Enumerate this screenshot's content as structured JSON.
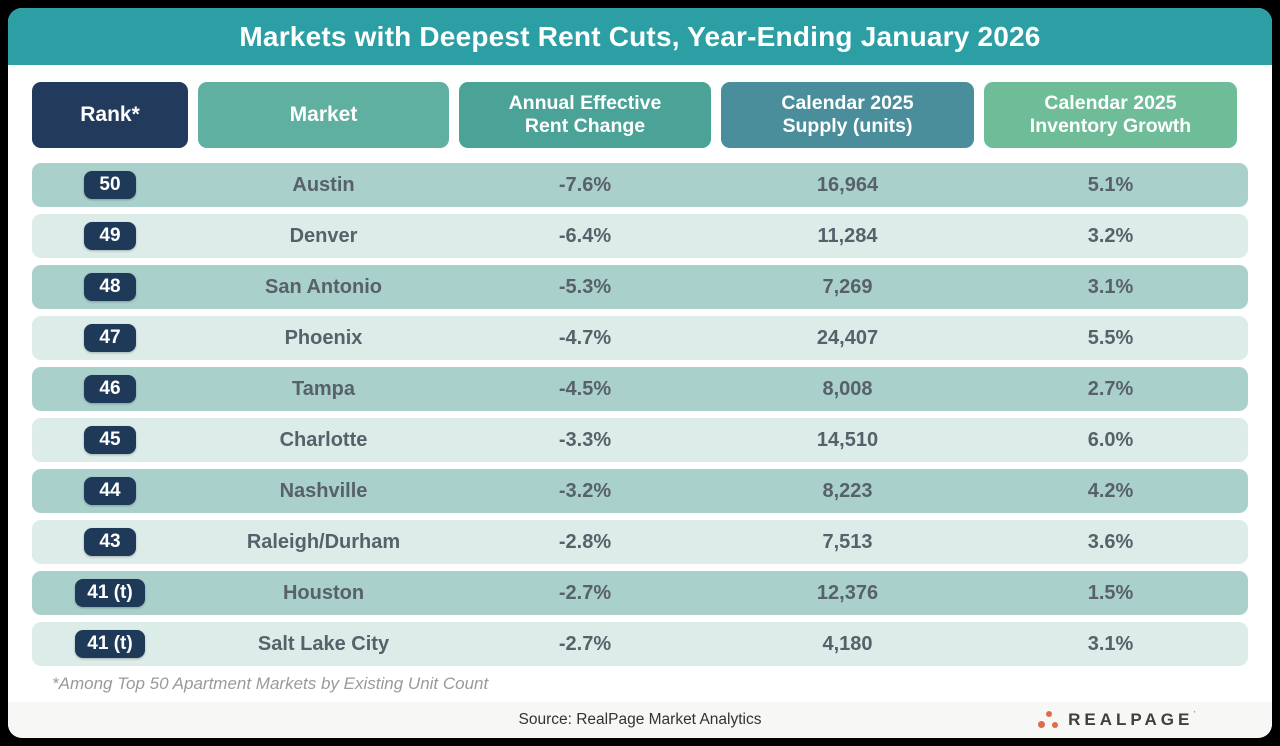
{
  "title": "Markets with Deepest Rent Cuts, Year-Ending January 2026",
  "columns": [
    {
      "key": "rank",
      "label": "Rank*"
    },
    {
      "key": "market",
      "label": "Market"
    },
    {
      "key": "rent",
      "label": "Annual Effective\nRent Change"
    },
    {
      "key": "supply",
      "label": "Calendar 2025\nSupply (units)"
    },
    {
      "key": "growth",
      "label": "Calendar 2025\nInventory Growth"
    }
  ],
  "rows": [
    {
      "rank": "50",
      "market": "Austin",
      "rent": "-7.6%",
      "supply": "16,964",
      "growth": "5.1%"
    },
    {
      "rank": "49",
      "market": "Denver",
      "rent": "-6.4%",
      "supply": "11,284",
      "growth": "3.2%"
    },
    {
      "rank": "48",
      "market": "San Antonio",
      "rent": "-5.3%",
      "supply": "7,269",
      "growth": "3.1%"
    },
    {
      "rank": "47",
      "market": "Phoenix",
      "rent": "-4.7%",
      "supply": "24,407",
      "growth": "5.5%"
    },
    {
      "rank": "46",
      "market": "Tampa",
      "rent": "-4.5%",
      "supply": "8,008",
      "growth": "2.7%"
    },
    {
      "rank": "45",
      "market": "Charlotte",
      "rent": "-3.3%",
      "supply": "14,510",
      "growth": "6.0%"
    },
    {
      "rank": "44",
      "market": "Nashville",
      "rent": "-3.2%",
      "supply": "8,223",
      "growth": "4.2%"
    },
    {
      "rank": "43",
      "market": "Raleigh/Durham",
      "rent": "-2.8%",
      "supply": "7,513",
      "growth": "3.6%"
    },
    {
      "rank": "41 (t)",
      "market": "Houston",
      "rent": "-2.7%",
      "supply": "12,376",
      "growth": "1.5%"
    },
    {
      "rank": "41 (t)",
      "market": "Salt Lake City",
      "rent": "-2.7%",
      "supply": "4,180",
      "growth": "3.1%"
    }
  ],
  "footnote": "*Among Top 50 Apartment Markets by Existing Unit Count",
  "footer": {
    "source": "Source: RealPage Market Analytics",
    "logo_text": "REALPAGE"
  },
  "colors": {
    "title_bar": "#2b9fa4",
    "rank_header": "#223a5c",
    "market_header": "#5fb0a0",
    "rent_header": "#4aa396",
    "supply_header": "#4a8e9b",
    "growth_header": "#6fbd98",
    "row_dark": "#aad0cc",
    "row_light": "#dcece9",
    "rank_badge": "#1e3a58",
    "logo_dots": "#e2694e"
  },
  "chart_data": {
    "type": "table",
    "title": "Markets with Deepest Rent Cuts, Year-Ending January 2026",
    "columns": [
      "Rank*",
      "Market",
      "Annual Effective Rent Change",
      "Calendar 2025 Supply (units)",
      "Calendar 2025 Inventory Growth"
    ],
    "rows": [
      [
        "50",
        "Austin",
        -7.6,
        16964,
        5.1
      ],
      [
        "49",
        "Denver",
        -6.4,
        11284,
        3.2
      ],
      [
        "48",
        "San Antonio",
        -5.3,
        7269,
        3.1
      ],
      [
        "47",
        "Phoenix",
        -4.7,
        24407,
        5.5
      ],
      [
        "46",
        "Tampa",
        -4.5,
        8008,
        2.7
      ],
      [
        "45",
        "Charlotte",
        -3.3,
        14510,
        6.0
      ],
      [
        "44",
        "Nashville",
        -3.2,
        8223,
        4.2
      ],
      [
        "43",
        "Raleigh/Durham",
        -2.8,
        7513,
        3.6
      ],
      [
        "41 (t)",
        "Houston",
        -2.7,
        12376,
        1.5
      ],
      [
        "41 (t)",
        "Salt Lake City",
        -2.7,
        4180,
        3.1
      ]
    ],
    "units": {
      "rent_change": "percent",
      "supply": "units",
      "inventory_growth": "percent"
    },
    "footnote": "*Among Top 50 Apartment Markets by Existing Unit Count",
    "source": "RealPage Market Analytics"
  }
}
